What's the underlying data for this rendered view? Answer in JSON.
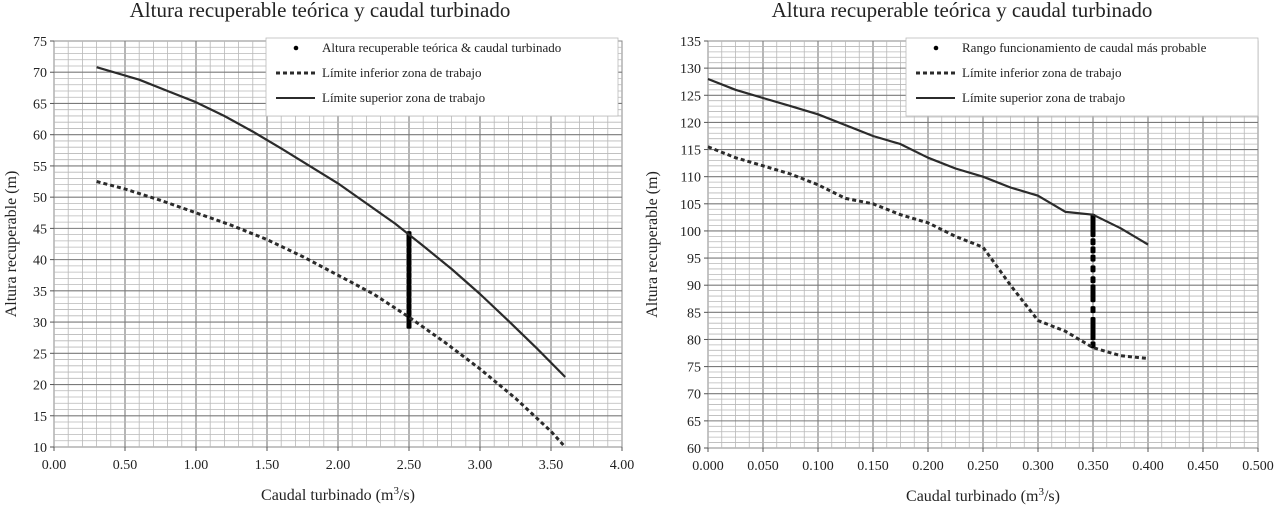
{
  "chart_data": [
    {
      "type": "line",
      "title": "Altura recuperable teórica y caudal turbinado",
      "xlabel": "Caudal turbinado (m3/s)",
      "xlabel_main": "Caudal turbinado (m",
      "xlabel_sup": "3",
      "xlabel_tail": "/s)",
      "ylabel": "Altura recuperable (m)",
      "xlim": [
        0,
        4
      ],
      "ylim": [
        10,
        75
      ],
      "xticks": [
        "0.00",
        "0.50",
        "1.00",
        "1.50",
        "2.00",
        "2.50",
        "3.00",
        "3.50",
        "4.00"
      ],
      "yticks": [
        "10",
        "15",
        "20",
        "25",
        "30",
        "35",
        "40",
        "45",
        "50",
        "55",
        "60",
        "65",
        "70",
        "75"
      ],
      "grid": true,
      "legend_position": "top-right",
      "series": [
        {
          "name": "Altura recuperable teórica & caudal turbinado",
          "style": "points",
          "x": [
            2.5,
            2.5,
            2.5,
            2.5,
            2.5,
            2.5,
            2.5,
            2.5,
            2.5,
            2.5,
            2.5,
            2.5,
            2.5,
            2.5,
            2.5,
            2.5
          ],
          "y": [
            29.5,
            30.5,
            31.5,
            32.5,
            33.5,
            34.5,
            35.5,
            36.5,
            37.5,
            38.5,
            39.5,
            40.5,
            41.5,
            42.5,
            43.3,
            44.0
          ]
        },
        {
          "name": "Límite inferior zona de trabajo",
          "style": "dashed",
          "x": [
            0.3,
            0.5,
            0.75,
            1.0,
            1.25,
            1.5,
            1.75,
            2.0,
            2.25,
            2.5,
            2.75,
            3.0,
            3.25,
            3.5,
            3.6
          ],
          "y": [
            52.5,
            51.3,
            49.5,
            47.5,
            45.5,
            43.2,
            40.5,
            37.5,
            34.5,
            30.8,
            26.8,
            22.5,
            17.8,
            12.5,
            10.0
          ]
        },
        {
          "name": "Límite superior zona de trabajo",
          "style": "solid",
          "x": [
            0.3,
            0.6,
            0.8,
            1.0,
            1.2,
            1.4,
            1.6,
            1.8,
            2.0,
            2.2,
            2.4,
            2.6,
            2.8,
            3.0,
            3.2,
            3.4,
            3.6
          ],
          "y": [
            70.8,
            68.8,
            67.0,
            65.2,
            63.0,
            60.5,
            57.8,
            55.0,
            52.2,
            49.0,
            45.8,
            42.2,
            38.5,
            34.5,
            30.2,
            25.8,
            21.2
          ]
        }
      ]
    },
    {
      "type": "line",
      "title": "Altura recuperable teórica y caudal turbinado",
      "xlabel": "Caudal turbinado (m3/s)",
      "xlabel_main": "Caudal turbinado (m",
      "xlabel_sup": "3",
      "xlabel_tail": "/s)",
      "ylabel": "Altura recuperable (m)",
      "xlim": [
        0,
        0.5
      ],
      "ylim": [
        60,
        135
      ],
      "xticks": [
        "0.000",
        "0.050",
        "0.100",
        "0.150",
        "0.200",
        "0.250",
        "0.300",
        "0.350",
        "0.400",
        "0.450",
        "0.500"
      ],
      "yticks": [
        "60",
        "65",
        "70",
        "75",
        "80",
        "85",
        "90",
        "95",
        "100",
        "105",
        "110",
        "115",
        "120",
        "125",
        "130",
        "135"
      ],
      "grid": true,
      "legend_position": "top-right",
      "series": [
        {
          "name": "Rango funcionamiento de caudal más probable",
          "style": "points",
          "x": [
            0.35,
            0.35,
            0.35,
            0.35,
            0.35,
            0.35,
            0.35,
            0.35,
            0.35,
            0.35,
            0.35,
            0.35,
            0.35,
            0.35,
            0.35,
            0.35,
            0.35,
            0.35
          ],
          "y": [
            79.0,
            80.5,
            81.5,
            82.5,
            83.5,
            85.5,
            87.5,
            88.5,
            89.5,
            91.0,
            93.0,
            95.0,
            96.5,
            98.0,
            99.5,
            100.5,
            101.5,
            102.5
          ]
        },
        {
          "name": "Límite inferior zona de trabajo",
          "style": "dashed",
          "x": [
            0.0,
            0.025,
            0.05,
            0.075,
            0.1,
            0.125,
            0.15,
            0.175,
            0.2,
            0.225,
            0.25,
            0.275,
            0.3,
            0.325,
            0.35,
            0.375,
            0.4
          ],
          "y": [
            115.5,
            113.5,
            112.0,
            110.5,
            108.5,
            106.0,
            105.0,
            103.0,
            101.5,
            99.0,
            97.0,
            90.0,
            83.5,
            81.5,
            78.5,
            77.0,
            76.5
          ]
        },
        {
          "name": "Límite superior zona de trabajo",
          "style": "solid",
          "x": [
            0.0,
            0.025,
            0.05,
            0.075,
            0.1,
            0.125,
            0.15,
            0.175,
            0.2,
            0.225,
            0.25,
            0.275,
            0.3,
            0.325,
            0.35,
            0.375,
            0.4
          ],
          "y": [
            128.0,
            126.0,
            124.5,
            123.0,
            121.5,
            119.5,
            117.5,
            116.0,
            113.5,
            111.5,
            110.0,
            108.0,
            106.5,
            103.5,
            103.0,
            100.5,
            97.5
          ]
        }
      ]
    }
  ]
}
